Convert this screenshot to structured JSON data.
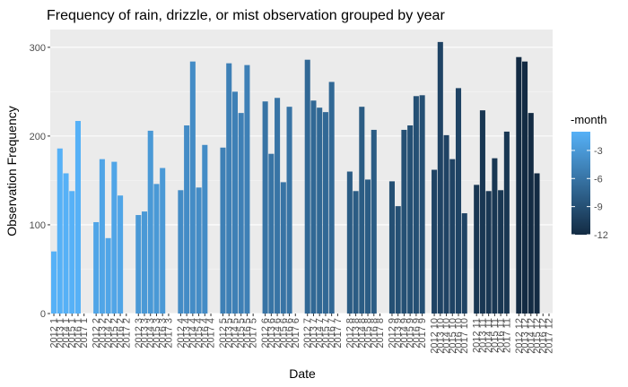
{
  "chart_data": {
    "type": "bar",
    "title": "Frequency of rain, drizzle, or mist observation grouped by year",
    "xlabel": "Date",
    "ylabel": "Observation Frequency",
    "ylim": [
      0,
      320
    ],
    "y_ticks": [
      0,
      100,
      200,
      300
    ],
    "grid": true,
    "legend": {
      "title": "-month",
      "placement": "right",
      "range": [
        -12,
        -1
      ],
      "ticks": [
        -3,
        -6,
        -9,
        -12
      ],
      "color_low": "#132B43",
      "color_high": "#56B1F7"
    },
    "groups": [
      {
        "month": 1,
        "x": [
          "2012 1",
          "2013 1",
          "2014 1",
          "2015 1",
          "2016 1",
          "2017 1"
        ],
        "values": [
          70,
          186,
          158,
          138,
          217,
          0
        ]
      },
      {
        "month": 2,
        "x": [
          "2012 2",
          "2013 2",
          "2014 2",
          "2015 2",
          "2016 2",
          "2017 2"
        ],
        "values": [
          103,
          174,
          85,
          171,
          133,
          0
        ]
      },
      {
        "month": 3,
        "x": [
          "2012 3",
          "2013 3",
          "2014 3",
          "2015 3",
          "2016 3",
          "2017 3"
        ],
        "values": [
          111,
          115,
          206,
          146,
          164,
          0
        ]
      },
      {
        "month": 4,
        "x": [
          "2012 4",
          "2013 4",
          "2014 4",
          "2015 4",
          "2016 4",
          "2017 4"
        ],
        "values": [
          139,
          212,
          284,
          142,
          190,
          0
        ]
      },
      {
        "month": 5,
        "x": [
          "2012 5",
          "2013 5",
          "2014 5",
          "2015 5",
          "2016 5",
          "2017 5"
        ],
        "values": [
          187,
          282,
          250,
          226,
          280,
          0
        ]
      },
      {
        "month": 6,
        "x": [
          "2012 6",
          "2013 6",
          "2014 6",
          "2015 6",
          "2016 6",
          "2017 6"
        ],
        "values": [
          239,
          180,
          243,
          148,
          233,
          0
        ]
      },
      {
        "month": 7,
        "x": [
          "2012 7",
          "2013 7",
          "2014 7",
          "2015 7",
          "2016 7",
          "2017 7"
        ],
        "values": [
          286,
          240,
          232,
          227,
          261,
          0
        ]
      },
      {
        "month": 8,
        "x": [
          "2012 8",
          "2013 8",
          "2014 8",
          "2015 8",
          "2016 8",
          "2017 8"
        ],
        "values": [
          160,
          138,
          233,
          151,
          207,
          0
        ]
      },
      {
        "month": 9,
        "x": [
          "2012 9",
          "2013 9",
          "2014 9",
          "2015 9",
          "2016 9",
          "2017 9"
        ],
        "values": [
          149,
          121,
          207,
          212,
          245,
          246
        ]
      },
      {
        "month": 10,
        "x": [
          "2012 10",
          "2013 10",
          "2014 10",
          "2015 10",
          "2016 10",
          "2017 10"
        ],
        "values": [
          162,
          306,
          201,
          174,
          254,
          113
        ]
      },
      {
        "month": 11,
        "x": [
          "2012 11",
          "2013 11",
          "2014 11",
          "2015 11",
          "2016 11",
          "2017 11"
        ],
        "values": [
          145,
          229,
          138,
          175,
          139,
          205
        ]
      },
      {
        "month": 12,
        "x": [
          "2012 12",
          "2013 12",
          "2014 12",
          "2015 12",
          "2016 12",
          "2017 12"
        ],
        "values": [
          289,
          284,
          226,
          158,
          0,
          0
        ]
      }
    ]
  }
}
